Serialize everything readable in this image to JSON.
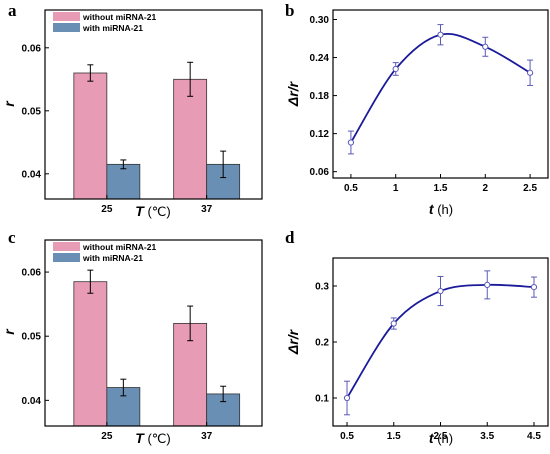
{
  "colors": {
    "without": "#e89bb5",
    "with": "#6a8fb4",
    "line": "#1a1a9a",
    "point": "#5a5ab8",
    "frame": "#000000"
  },
  "chart_data": [
    {
      "letter": "a",
      "type": "bar",
      "categories": [
        "25",
        "37"
      ],
      "series": [
        {
          "name": "without miRNA-21",
          "values": [
            0.056,
            0.055
          ],
          "errors": [
            0.0013,
            0.0027
          ]
        },
        {
          "name": "with miRNA-21",
          "values": [
            0.0415,
            0.0415
          ],
          "errors": [
            0.0007,
            0.0021
          ]
        }
      ],
      "xlabel_main": "T",
      "xlabel_unit": " (℃)",
      "ylabel": "r",
      "ylim": [
        0.036,
        0.066
      ],
      "yticks": [
        0.04,
        0.05,
        0.06
      ],
      "ytick_labels": [
        "0.04",
        "0.05",
        "0.06"
      ],
      "legend": "top-left"
    },
    {
      "letter": "b",
      "type": "line",
      "x": [
        0.5,
        1,
        1.5,
        2,
        2.5
      ],
      "y": [
        0.106,
        0.222,
        0.276,
        0.257,
        0.216
      ],
      "errors": [
        0.018,
        0.01,
        0.016,
        0.015,
        0.02
      ],
      "xlabel_main": "t",
      "xlabel_unit": " (h)",
      "ylabel": "Δr/r",
      "xlim": [
        0.3,
        2.7
      ],
      "ylim": [
        0.05,
        0.315
      ],
      "xticks": [
        0.5,
        1,
        1.5,
        2,
        2.5
      ],
      "xtick_labels": [
        "0.5",
        "1",
        "1.5",
        "2",
        "2.5"
      ],
      "yticks": [
        0.06,
        0.12,
        0.18,
        0.24,
        0.3
      ],
      "ytick_labels": [
        "0.06",
        "0.12",
        "0.18",
        "0.24",
        "0.30"
      ]
    },
    {
      "letter": "c",
      "type": "bar",
      "categories": [
        "25",
        "37"
      ],
      "series": [
        {
          "name": "without miRNA-21",
          "values": [
            0.0585,
            0.052
          ],
          "errors": [
            0.0018,
            0.0027
          ]
        },
        {
          "name": "with miRNA-21",
          "values": [
            0.042,
            0.041
          ],
          "errors": [
            0.0013,
            0.0012
          ]
        }
      ],
      "xlabel_main": "T",
      "xlabel_unit": " (℃)",
      "ylabel": "r",
      "ylim": [
        0.036,
        0.065
      ],
      "yticks": [
        0.04,
        0.05,
        0.06
      ],
      "ytick_labels": [
        "0.04",
        "0.05",
        "0.06"
      ],
      "legend": "top-left"
    },
    {
      "letter": "d",
      "type": "line",
      "x": [
        0.5,
        1.5,
        2.5,
        3.5,
        4.5
      ],
      "y": [
        0.1,
        0.233,
        0.291,
        0.302,
        0.298
      ],
      "errors": [
        0.03,
        0.01,
        0.026,
        0.025,
        0.018
      ],
      "xlabel_main": "t",
      "xlabel_unit": " (h)",
      "ylabel": "Δr/r",
      "xlim": [
        0.2,
        4.8
      ],
      "ylim": [
        0.05,
        0.35
      ],
      "xticks": [
        0.5,
        1.5,
        2.5,
        3.5,
        4.5
      ],
      "xtick_labels": [
        "0.5",
        "1.5",
        "2.5",
        "3.5",
        "4.5"
      ],
      "yticks": [
        0.1,
        0.2,
        0.3
      ],
      "ytick_labels": [
        "0.1",
        "0.2",
        "0.3"
      ]
    }
  ]
}
